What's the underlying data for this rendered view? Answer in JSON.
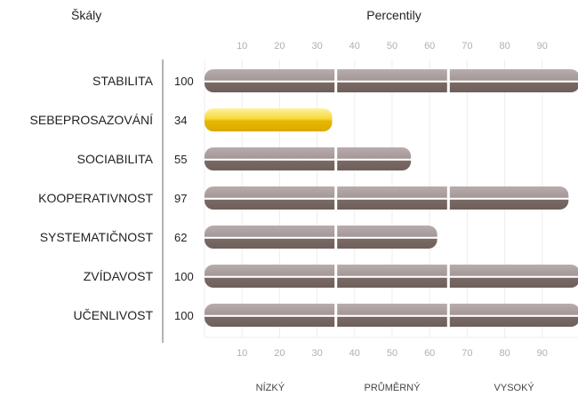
{
  "headers": {
    "scales": "Škály",
    "percentiles": "Percentily"
  },
  "chart_data": {
    "type": "bar",
    "orientation": "horizontal",
    "categories": [
      "STABILITA",
      "SEBEPROSAZOVÁNÍ",
      "SOCIABILITA",
      "KOOPERATIVNOST",
      "SYSTEMATIČNOST",
      "ZVÍDAVOST",
      "UČENLIVOST"
    ],
    "values": [
      100,
      34,
      55,
      97,
      62,
      100,
      100
    ],
    "highlighted_category": "SEBEPROSAZOVÁNÍ",
    "xlim": [
      0,
      100
    ],
    "xticks": [
      10,
      20,
      30,
      40,
      50,
      60,
      70,
      80,
      90
    ],
    "bands": [
      {
        "label": "NÍZKÝ",
        "range": [
          0,
          35
        ]
      },
      {
        "label": "PRŮMĚRNÝ",
        "range": [
          35,
          65
        ]
      },
      {
        "label": "VYSOKÝ",
        "range": [
          65,
          100
        ]
      }
    ],
    "grid": true,
    "colors": {
      "bar": "#7a6a66",
      "bar_light": "#a8999a",
      "highlight": "#e8b800",
      "highlight_light": "#f7dc4a",
      "grid": "#ececec",
      "tick": "#b0b0b0",
      "axis": "#9a9a9a"
    }
  }
}
